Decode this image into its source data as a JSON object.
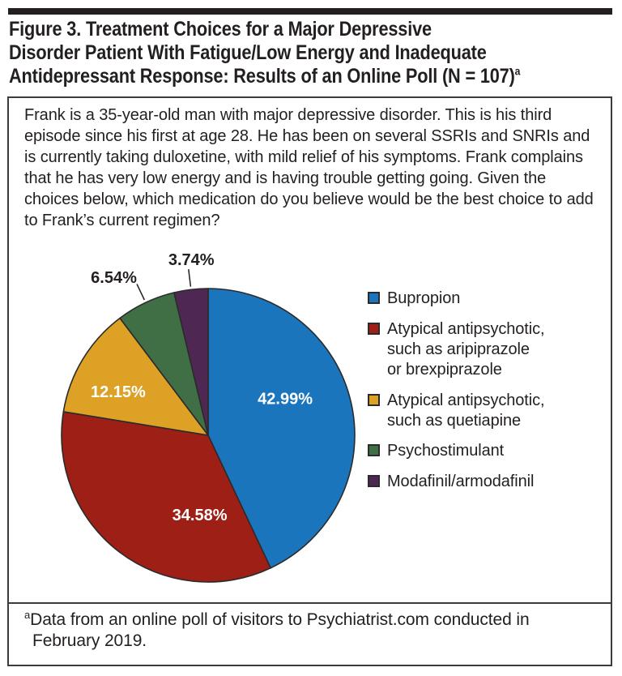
{
  "header": {
    "title_lines": [
      "Figure 3. Treatment Choices for a Major Depressive",
      "Disorder Patient With Fatigue/Low Energy and Inadequate",
      "Antidepressant Response: Results of an Online Poll (N = 107)"
    ],
    "title_superscript": "a"
  },
  "vignette": {
    "text": "Frank is a 35-year-old man with major depressive disorder. This is his third episode since his first at age 28. He has been on several SSRIs and SNRIs and is currently taking duloxetine, with mild relief of his symptoms. Frank complains that he has very low energy and is having trouble getting going. Given the choices below, which medication do you believe would be the best choice to add to Frank’s current regimen?"
  },
  "chart_data": {
    "type": "pie",
    "title": "Treatment choices for a major depressive disorder patient (online poll results)",
    "n_label": "N = 107",
    "direction": "clockwise",
    "start_angle_deg": 0,
    "legend_position": "right",
    "inside_label_color": "#ffffff",
    "outside_label_color": "#231f20",
    "slices": [
      {
        "label": "Bupropion",
        "value": 42.99,
        "pct_label": "42.99%",
        "color": "#1b75bc",
        "label_inside": true,
        "label_angle": 65,
        "label_r": 0.58,
        "legend_label": "Bupropion"
      },
      {
        "label": "Atypical antipsychotic, such as aripiprazole or brexpiprazole",
        "value": 34.58,
        "pct_label": "34.58%",
        "color": "#9e1f16",
        "label_inside": true,
        "label_angle": 186,
        "label_r": 0.55,
        "legend_label": "Atypical antipsychotic,\nsuch as aripiprazole\nor brexpiprazole"
      },
      {
        "label": "Atypical antipsychotic, such as quetiapine",
        "value": 12.15,
        "pct_label": "12.15%",
        "color": "#dda125",
        "label_inside": true,
        "label_angle": 295.5,
        "label_r": 0.68,
        "legend_label": "Atypical antipsychotic,\nsuch as quetiapine"
      },
      {
        "label": "Psychostimulant",
        "value": 6.54,
        "pct_label": "6.54%",
        "color": "#416f45",
        "label_inside": false,
        "label_angle": 329,
        "label_r": 1.25,
        "legend_label": "Psychostimulant"
      },
      {
        "label": "Modafinil/armodafinil",
        "value": 3.74,
        "pct_label": "3.74%",
        "color": "#4f2753",
        "label_inside": false,
        "label_angle": 354.5,
        "label_r": 1.2,
        "legend_label": "Modafinil/armodafinil"
      }
    ]
  },
  "footnote": {
    "superscript": "a",
    "lines": [
      "Data from an online poll of visitors to Psychiatrist.com conducted in",
      "February 2019."
    ]
  },
  "theme": {
    "rule_color": "#231f20",
    "border_color": "#3b3b3b",
    "text_color": "#231f20",
    "slice_outline": "#2b2b2b"
  }
}
